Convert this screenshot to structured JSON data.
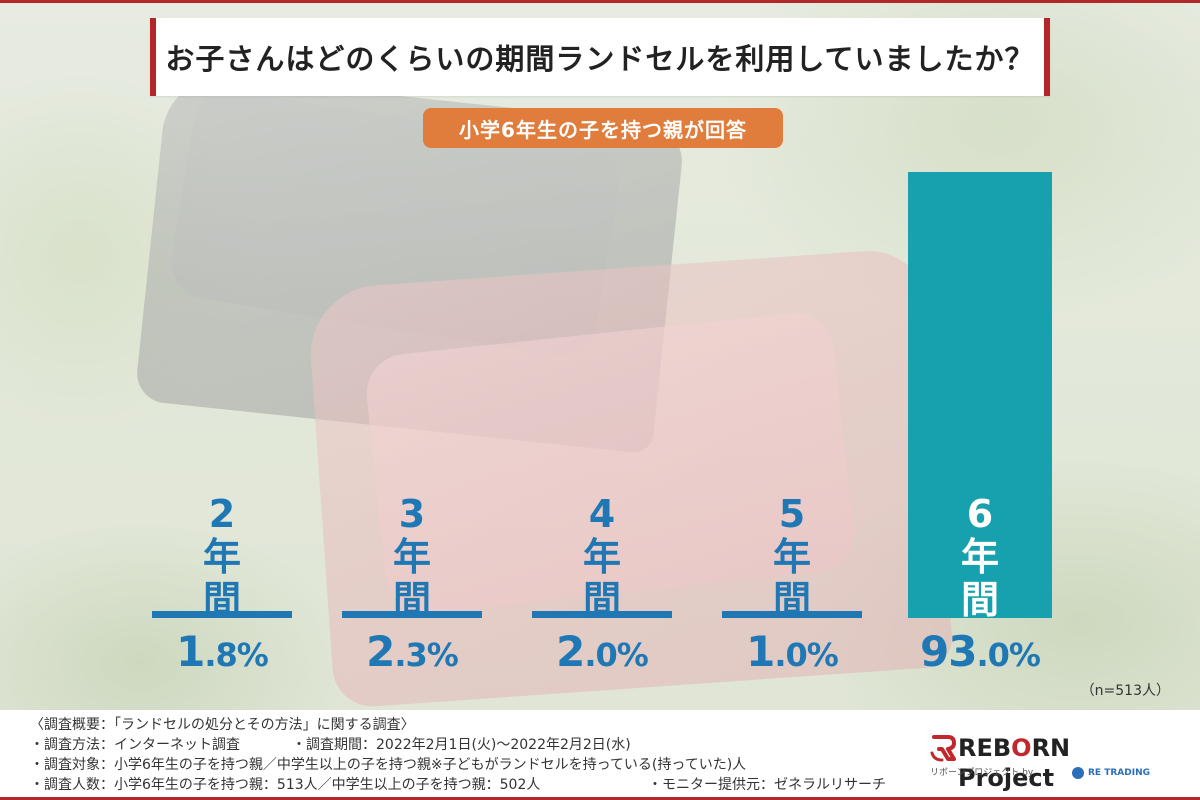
{
  "title": "お子さんはどのくらいの期間ランドセルを利用していましたか？",
  "subtitle": "小学6年生の子を持つ親が回答",
  "sample_note": "（n=513人）",
  "colors": {
    "accent_red": "#b3262a",
    "pill_orange": "#e07d3c",
    "label_blue": "#1f78b4",
    "bar_teal": "#17a0ad"
  },
  "chart_data": {
    "type": "bar",
    "categories": [
      "2年間",
      "3年間",
      "4年間",
      "5年間",
      "6年間"
    ],
    "values": [
      1.8,
      2.3,
      2.0,
      1.0,
      93.0
    ],
    "value_labels": [
      "1.8%",
      "2.3%",
      "2.0%",
      "1.0%",
      "93.0%"
    ],
    "title": "お子さんはどのくらいの期間ランドセルを利用していましたか？",
    "subtitle": "小学6年生の子を持つ親が回答",
    "xlabel": "",
    "ylabel": "",
    "ylim": [
      0,
      100
    ],
    "grid": false,
    "legend": "none"
  },
  "footer": {
    "line1": "〈調査概要：「ランドセルの処分とその方法」に関する調査〉",
    "line2a": "・調査方法：インターネット調査",
    "line2b": "・調査期間：2022年2月1日(火)～2022年2月2日(水)",
    "line3": "・調査対象：小学6年生の子を持つ親／中学生以上の子を持つ親※子どもがランドセルを持っている(持っていた)人",
    "line4a": "・調査人数：小学6年生の子を持つ親：513人／中学生以上の子を持つ親：502人",
    "line4b": "・モニター提供元：ゼネラルリサーチ"
  },
  "logo": {
    "main_prefix": "REB",
    "main_o": "O",
    "main_suffix": "RN Project",
    "sub": "リボーンプロジェクト by",
    "partner": "RE TRADING"
  }
}
